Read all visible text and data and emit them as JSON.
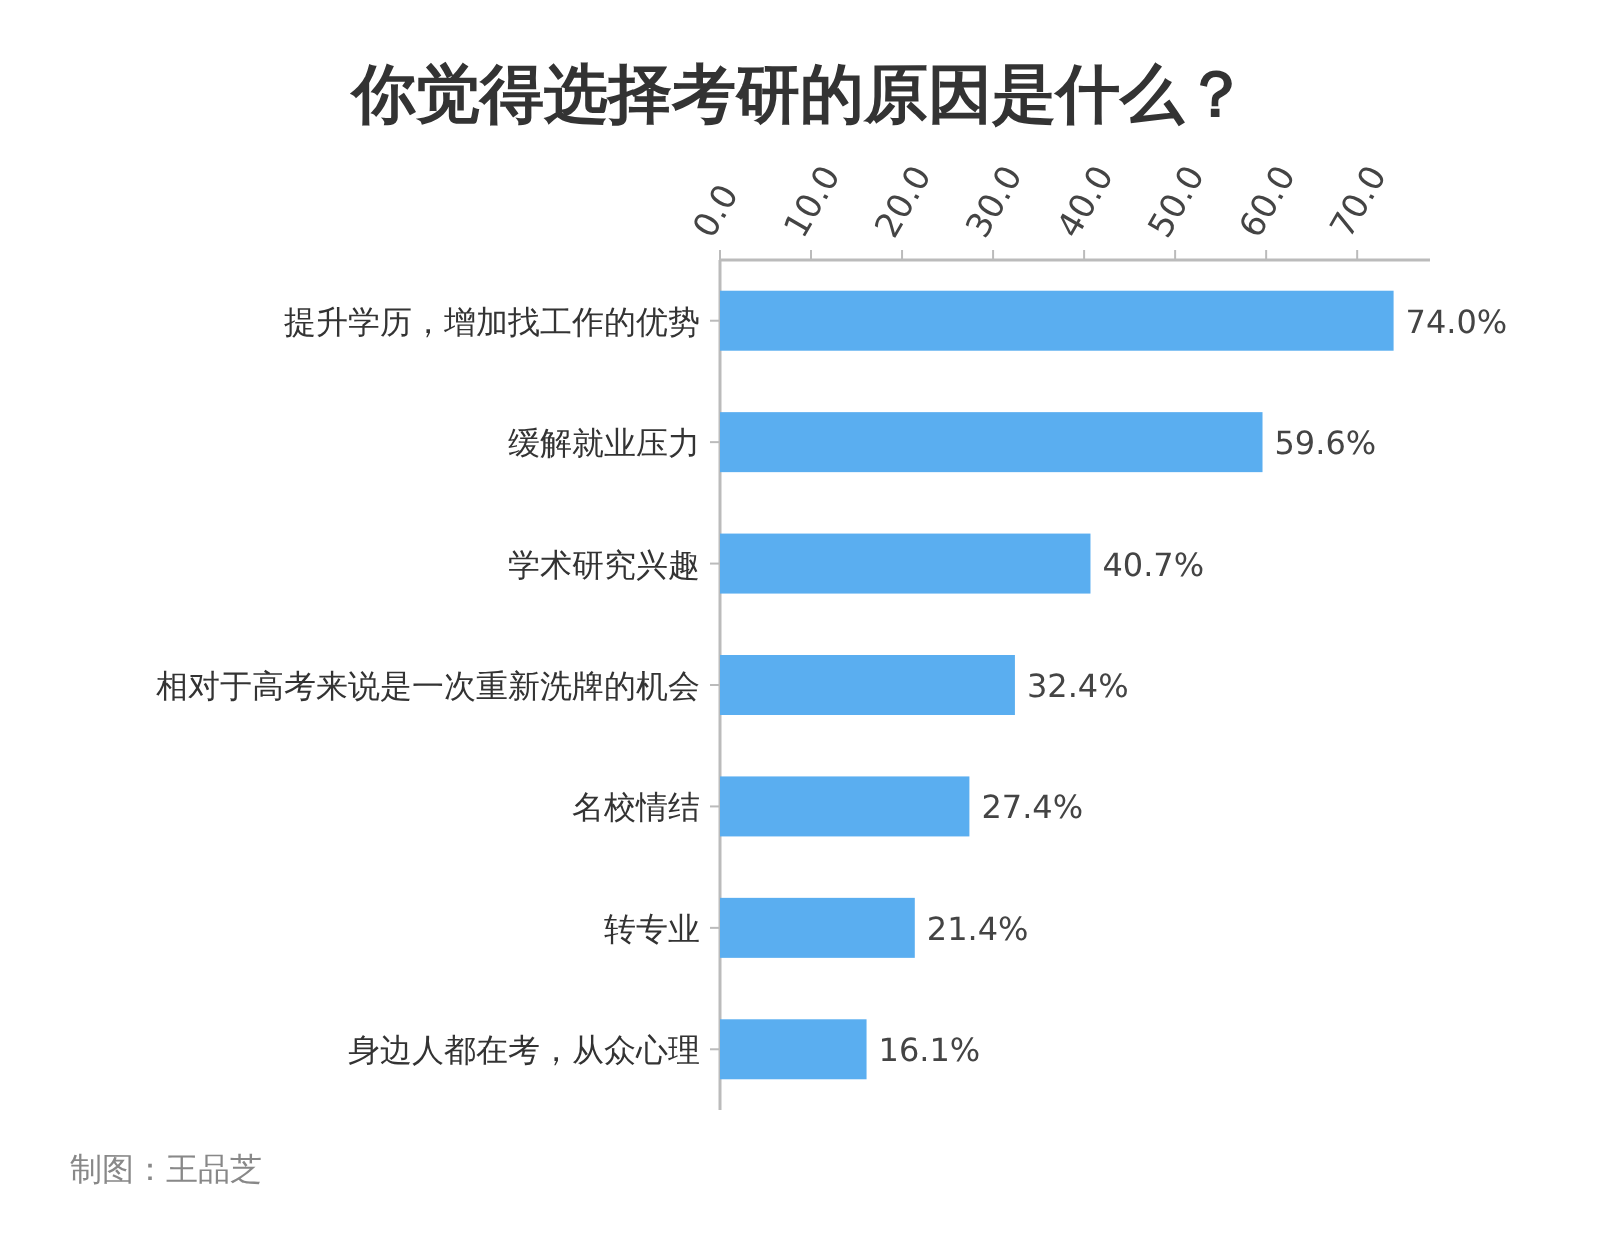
{
  "chart_data": {
    "type": "bar",
    "orientation": "horizontal",
    "title": "你觉得选择考研的原因是什么？",
    "categories": [
      "提升学历，增加找工作的优势",
      "缓解就业压力",
      "学术研究兴趣",
      "相对于高考来说是一次重新洗牌的机会",
      "名校情结",
      "转专业",
      "身边人都在考，从众心理"
    ],
    "values": [
      74.0,
      59.6,
      40.7,
      32.4,
      27.4,
      21.4,
      16.1
    ],
    "value_labels": [
      "74.0%",
      "59.6%",
      "40.7%",
      "32.4%",
      "27.4%",
      "21.4%",
      "16.1%"
    ],
    "color": "#5aaef0",
    "xlim": [
      0,
      78
    ],
    "xticks": [
      {
        "value": 0,
        "label": "0.0"
      },
      {
        "value": 10,
        "label": "10.0"
      },
      {
        "value": 20,
        "label": "20.0"
      },
      {
        "value": 30,
        "label": "30.0"
      },
      {
        "value": 40,
        "label": "40.0"
      },
      {
        "value": 50,
        "label": "50.0"
      },
      {
        "value": 60,
        "label": "60.0"
      },
      {
        "value": 70,
        "label": "70.0"
      }
    ],
    "annotations": [
      "制图：王品芝"
    ]
  }
}
